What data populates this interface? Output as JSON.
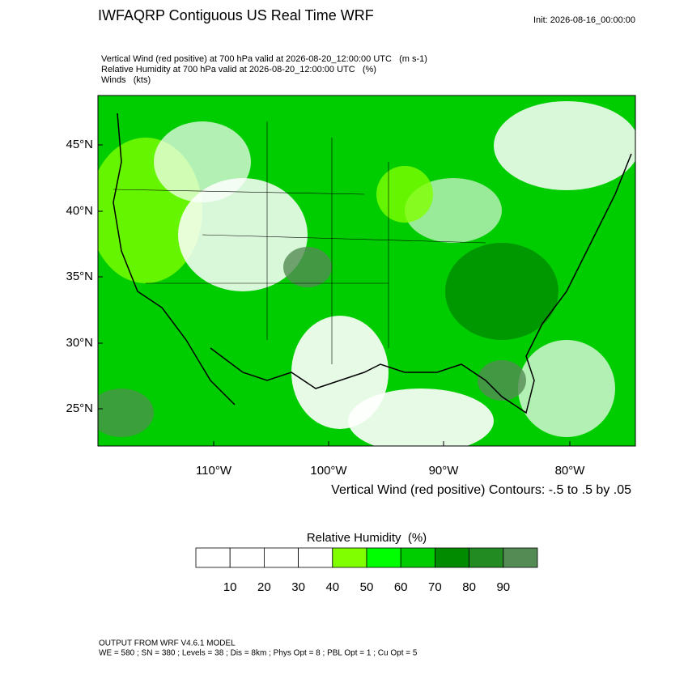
{
  "header": {
    "title": "IWFAQRP Contiguous US Real Time WRF",
    "init": "Init: 2026-08-16_00:00:00",
    "fields": [
      "Vertical Wind (red positive) at 700 hPa valid at 2026-08-20_12:00:00 UTC   (m s-1)",
      "Relative Humidity at 700 hPa valid at 2026-08-20_12:00:00 UTC   (%)",
      "Winds   (kts)"
    ]
  },
  "map": {
    "lat_labels": [
      "45°N",
      "40°N",
      "35°N",
      "30°N",
      "25°N"
    ],
    "lon_labels": [
      "110°W",
      "100°W",
      "90°W",
      "80°W"
    ],
    "contour_note": "Vertical Wind (red positive) Contours: -.5 to .5 by .05"
  },
  "colorbar": {
    "title": "Relative Humidity  (%)",
    "colors": [
      "#ffffff",
      "#ffffff",
      "#ffffff",
      "#ffffff",
      "#80ff00",
      "#00ff00",
      "#00cd00",
      "#008b00",
      "#228b22",
      "#548b54"
    ],
    "labels": [
      10,
      20,
      30,
      40,
      50,
      60,
      70,
      80,
      90
    ]
  },
  "footer": [
    "OUTPUT FROM WRF V4.6.1 MODEL",
    "WE = 580 ; SN = 380 ; Levels = 38 ; Dis = 8km ; Phys Opt = 8 ; PBL Opt = 1 ; Cu Opt = 5"
  ]
}
